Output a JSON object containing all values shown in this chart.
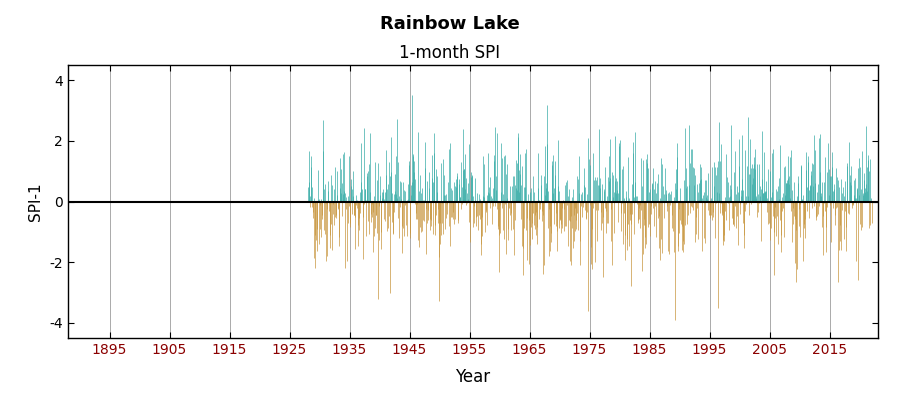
{
  "title": "Rainbow Lake",
  "subtitle": "1-month SPI",
  "ylabel": "SPI-1",
  "xlabel": "Year",
  "ylim": [
    -4.5,
    4.5
  ],
  "yticks": [
    -4,
    -2,
    0,
    2,
    4
  ],
  "xticks": [
    1895,
    1905,
    1915,
    1925,
    1935,
    1945,
    1955,
    1965,
    1975,
    1985,
    1995,
    2005,
    2015
  ],
  "xlim_min": 1888,
  "xlim_max": 2023,
  "data_start_year": 1928,
  "data_end_year": 2022,
  "color_positive": "#3aada8",
  "color_negative": "#c8963e",
  "background_color": "#ffffff",
  "grid_color": "#aaaaaa",
  "xticklabel_color": "#8B0000",
  "title_fontsize": 13,
  "subtitle_fontsize": 12,
  "axis_label_fontsize": 11,
  "tick_fontsize": 10,
  "seed": 42
}
